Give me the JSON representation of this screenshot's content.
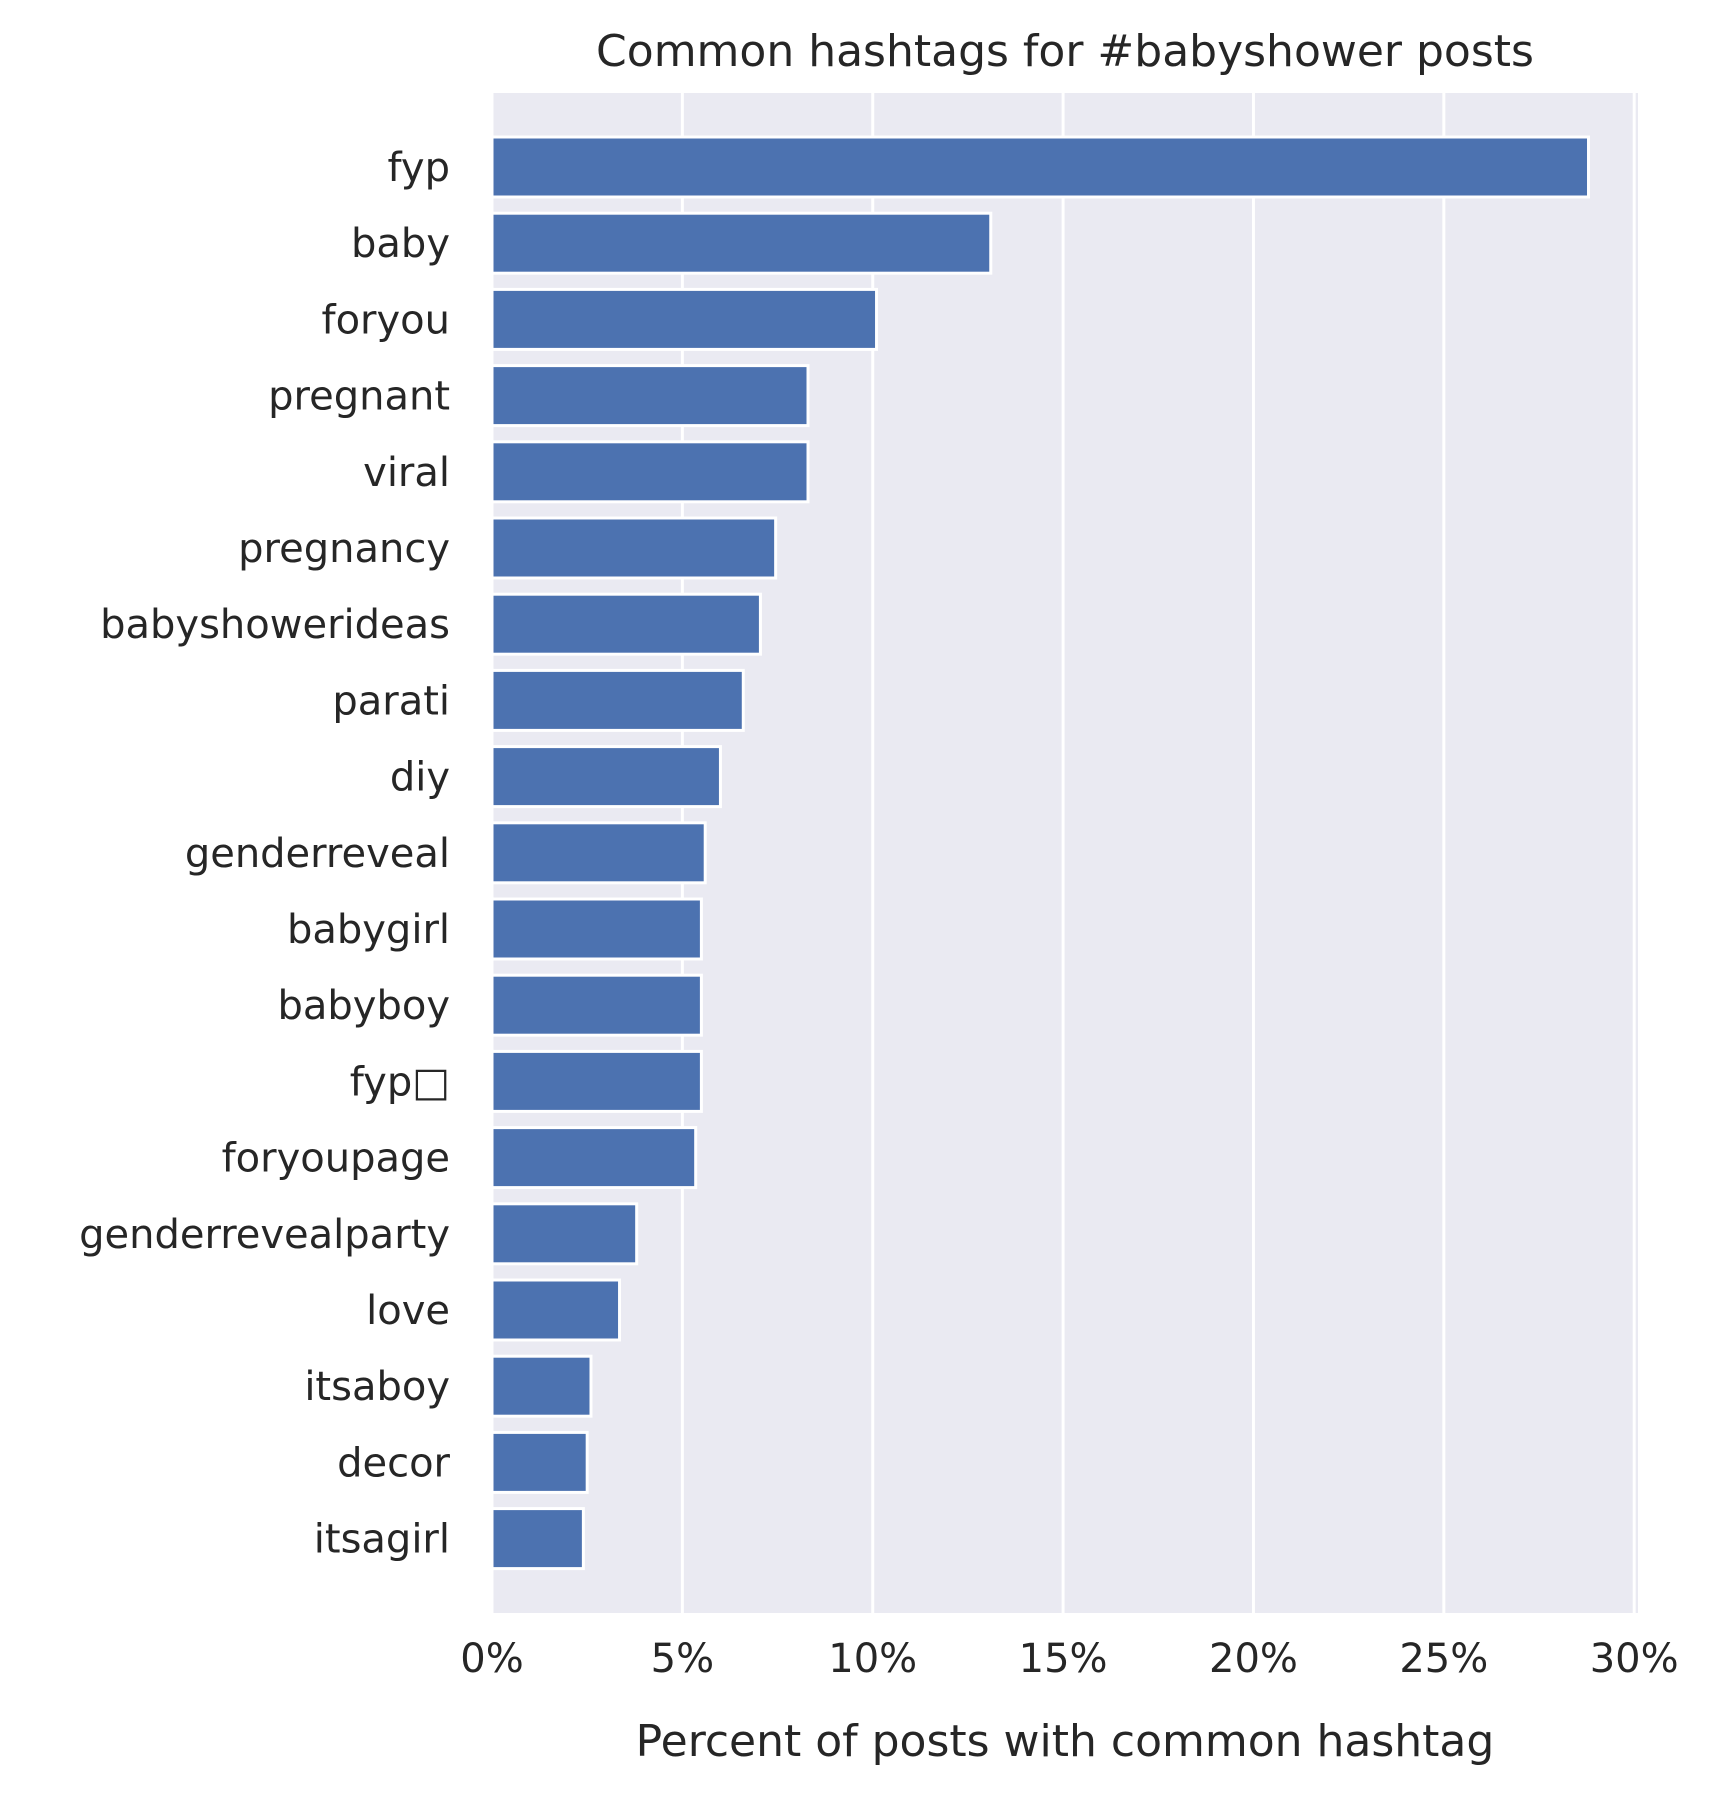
{
  "chart_data": {
    "type": "bar",
    "orientation": "horizontal",
    "title": "Common hashtags for #babyshower posts",
    "xlabel": "Percent of posts with common hashtag",
    "ylabel": "",
    "categories": [
      "fyp",
      "baby",
      "foryou",
      "pregnant",
      "viral",
      "pregnancy",
      "babyshowerideas",
      "parati",
      "diy",
      "genderreveal",
      "babygirl",
      "babyboy",
      "fyp□",
      "foryoupage",
      "genderrevealparty",
      "love",
      "itsaboy",
      "decor",
      "itsagirl"
    ],
    "values": [
      28.8,
      13.1,
      10.1,
      8.3,
      8.3,
      7.45,
      7.05,
      6.6,
      6.0,
      5.6,
      5.5,
      5.5,
      5.5,
      5.35,
      3.8,
      3.35,
      2.6,
      2.5,
      2.4
    ],
    "xlim": [
      0,
      30.1
    ],
    "xticks": [
      "0%",
      "5%",
      "10%",
      "15%",
      "20%",
      "25%",
      "30%"
    ],
    "xtick_values": [
      0,
      5,
      10,
      15,
      20,
      25,
      30
    ],
    "grid": true,
    "colors": {
      "bar": "#4c72b0",
      "background": "#eaeaf2",
      "grid": "#ffffff"
    }
  }
}
